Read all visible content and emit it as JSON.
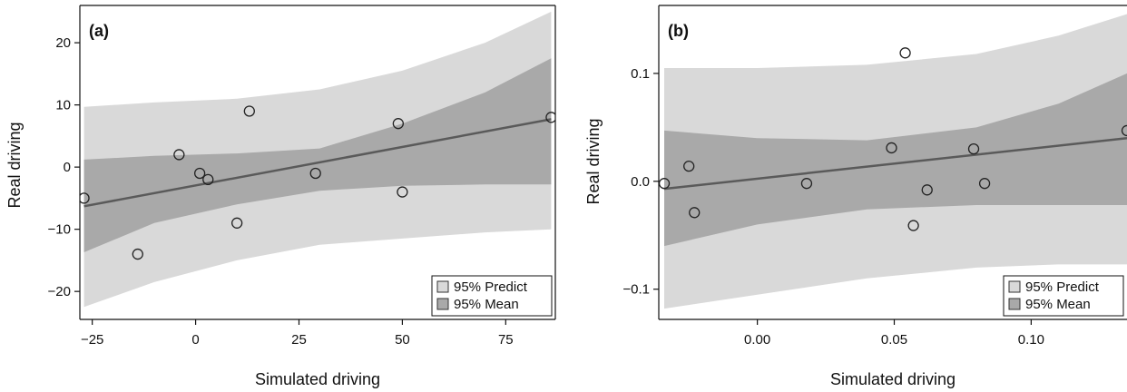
{
  "chart_data": [
    {
      "type": "scatter",
      "panel_label": "(a)",
      "xlabel": "Simulated driving",
      "ylabel": "Real driving",
      "xlim": [
        -28,
        87
      ],
      "ylim": [
        -24.5,
        26
      ],
      "xticks": [
        -25,
        0,
        25,
        50,
        75
      ],
      "xtick_labels": [
        "−25",
        "0",
        "25",
        "50",
        "75"
      ],
      "yticks": [
        -20,
        -10,
        0,
        10,
        20
      ],
      "ytick_labels": [
        "−20",
        "−10",
        "0",
        "10",
        "20"
      ],
      "points": {
        "x": [
          -27,
          -14,
          -4,
          1,
          3,
          10,
          13,
          29,
          49,
          50,
          86
        ],
        "y": [
          -5,
          -14,
          2,
          -1,
          -2,
          -9,
          9,
          -1,
          7,
          -4,
          8
        ]
      },
      "fit_line": {
        "x": [
          -27,
          86
        ],
        "y": [
          -6.3,
          7.7
        ]
      },
      "bands": {
        "predict_95": {
          "x": [
            -27,
            -10,
            10,
            30,
            50,
            70,
            86
          ],
          "upper": [
            9.7,
            10.4,
            11.0,
            12.5,
            15.5,
            20.0,
            25.0
          ],
          "lower": [
            -22.5,
            -18.5,
            -15.0,
            -12.5,
            -11.5,
            -10.5,
            -10.0
          ]
        },
        "mean_95": {
          "x": [
            -27,
            -10,
            10,
            30,
            50,
            70,
            86
          ],
          "upper": [
            1.2,
            1.8,
            2.2,
            3.0,
            7.0,
            12.0,
            17.5
          ],
          "lower": [
            -13.7,
            -9.0,
            -6.0,
            -3.8,
            -3.0,
            -2.8,
            -2.8
          ]
        }
      },
      "legend": {
        "placement": "bottom-right",
        "entries": [
          "95% Predict",
          "95% Mean"
        ]
      }
    },
    {
      "type": "scatter",
      "panel_label": "(b)",
      "xlabel": "Simulated driving",
      "ylabel": "Real driving",
      "xlim": [
        -0.036,
        0.135
      ],
      "ylim": [
        -0.128,
        0.163
      ],
      "xticks": [
        0.0,
        0.05,
        0.1
      ],
      "xtick_labels": [
        "0.00",
        "0.05",
        "0.10"
      ],
      "yticks": [
        -0.1,
        0.0,
        0.1
      ],
      "ytick_labels": [
        "−0.1",
        "0.0",
        "0.1"
      ],
      "points": {
        "x": [
          -0.034,
          -0.025,
          -0.023,
          0.018,
          0.049,
          0.054,
          0.057,
          0.062,
          0.079,
          0.083,
          0.135
        ],
        "y": [
          -0.002,
          0.014,
          -0.029,
          -0.002,
          0.031,
          0.119,
          -0.041,
          -0.008,
          0.03,
          -0.002,
          0.047
        ]
      },
      "fit_line": {
        "x": [
          -0.034,
          0.135
        ],
        "y": [
          -0.007,
          0.04
        ]
      },
      "bands": {
        "predict_95": {
          "x": [
            -0.034,
            0.0,
            0.04,
            0.08,
            0.11,
            0.135
          ],
          "upper": [
            0.105,
            0.105,
            0.108,
            0.118,
            0.135,
            0.155
          ],
          "lower": [
            -0.118,
            -0.105,
            -0.09,
            -0.08,
            -0.077,
            -0.077
          ]
        },
        "mean_95": {
          "x": [
            -0.034,
            0.0,
            0.04,
            0.08,
            0.11,
            0.135
          ],
          "upper": [
            0.047,
            0.04,
            0.038,
            0.05,
            0.072,
            0.1
          ],
          "lower": [
            -0.06,
            -0.04,
            -0.026,
            -0.022,
            -0.022,
            -0.022
          ]
        }
      },
      "legend": {
        "placement": "bottom-right",
        "entries": [
          "95% Predict",
          "95% Mean"
        ]
      }
    }
  ],
  "colors": {
    "predict_band": "#d9d9d9",
    "mean_band": "#a9a9a9",
    "fit_line": "#5a5a5a",
    "point_stroke": "#222222",
    "frame": "#111111"
  }
}
